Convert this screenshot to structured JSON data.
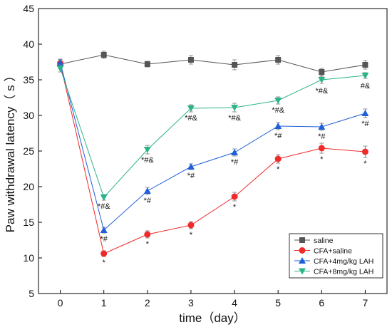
{
  "chart_data": {
    "type": "line",
    "xlabel": "time（day）",
    "ylabel": "Paw withdrawal latency（ s ）",
    "xlim": [
      -0.5,
      7.5
    ],
    "ylim": [
      5,
      45
    ],
    "x_ticks": [
      "0",
      "1",
      "2",
      "3",
      "4",
      "5",
      "6",
      "7"
    ],
    "y_ticks": [
      "5",
      "10",
      "15",
      "20",
      "25",
      "30",
      "35",
      "40",
      "45"
    ],
    "grid": false,
    "legend_placement": "bottom-right",
    "x": [
      0,
      1,
      2,
      3,
      4,
      5,
      6,
      7
    ],
    "series": [
      {
        "name": "saline",
        "color": "#555555",
        "marker": "square",
        "values": [
          37.2,
          38.5,
          37.2,
          37.8,
          37.1,
          37.8,
          36.1,
          37.1
        ],
        "errors": [
          0.6,
          0.5,
          0.4,
          0.6,
          0.7,
          0.6,
          0.5,
          0.6
        ],
        "annotations": [
          "",
          "",
          "",
          "",
          "",
          "",
          "",
          ""
        ]
      },
      {
        "name": "CFA+saline",
        "color": "#ee2a2a",
        "marker": "circle",
        "values": [
          37.3,
          10.6,
          13.3,
          14.6,
          18.6,
          23.9,
          25.4,
          24.9
        ],
        "errors": [
          0.5,
          0.4,
          0.5,
          0.5,
          0.6,
          0.6,
          0.7,
          0.8
        ],
        "annotations": [
          "",
          "*",
          "*",
          "*",
          "*",
          "*",
          "*",
          "*"
        ]
      },
      {
        "name": "CFA+4mg/kg LAH",
        "color": "#1f5fd9",
        "marker": "triangle-up",
        "values": [
          37.4,
          13.9,
          19.4,
          22.8,
          24.8,
          28.5,
          28.4,
          30.3
        ],
        "errors": [
          0.5,
          0.4,
          0.5,
          0.4,
          0.5,
          0.5,
          0.5,
          0.6
        ],
        "annotations": [
          "",
          "*#",
          "*#",
          "*#",
          "*#",
          "*#",
          "*#",
          "*#"
        ]
      },
      {
        "name": "CFA+8mg/kg LAH",
        "color": "#2cb38a",
        "marker": "triangle-down",
        "values": [
          36.6,
          18.5,
          25.2,
          31.0,
          31.1,
          32.1,
          35.0,
          35.6
        ],
        "errors": [
          0.5,
          0.4,
          0.6,
          0.5,
          0.6,
          0.5,
          0.5,
          0.4
        ],
        "annotations": [
          "",
          "*#&",
          "*#&",
          "*#&",
          "*#&",
          "*#&",
          "*#&",
          "#&"
        ]
      }
    ]
  }
}
